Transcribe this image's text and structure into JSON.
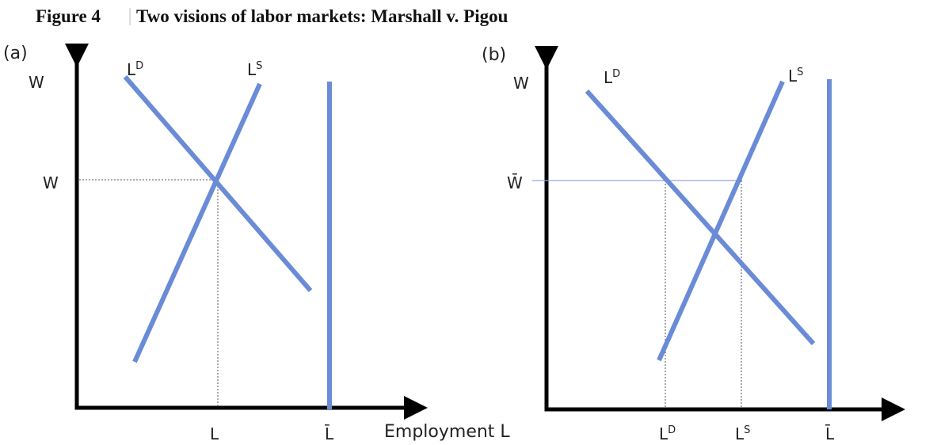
{
  "figure": {
    "number": "Figure 4",
    "title": "Two visions of labor markets: Marshall v. Pigou"
  },
  "panels": [
    {
      "label": "(a)",
      "y_axis_label": "W",
      "wage_label": "W",
      "demand_label": {
        "base": "L",
        "sup": "D"
      },
      "supply_label": {
        "base": "L",
        "sup": "S"
      },
      "employment_label": "L",
      "labor_force_label": "L̄",
      "x_axis_title": "Employment L"
    },
    {
      "label": "(b)",
      "y_axis_label": "W",
      "wage_label": "W̄",
      "demand_label": {
        "base": "L",
        "sup": "D"
      },
      "supply_label": {
        "base": "L",
        "sup": "S"
      },
      "employment_demand_label": {
        "base": "L",
        "sup": "D"
      },
      "employment_supply_label": {
        "base": "L",
        "sup": "S"
      },
      "labor_force_label": "L̄"
    }
  ]
}
